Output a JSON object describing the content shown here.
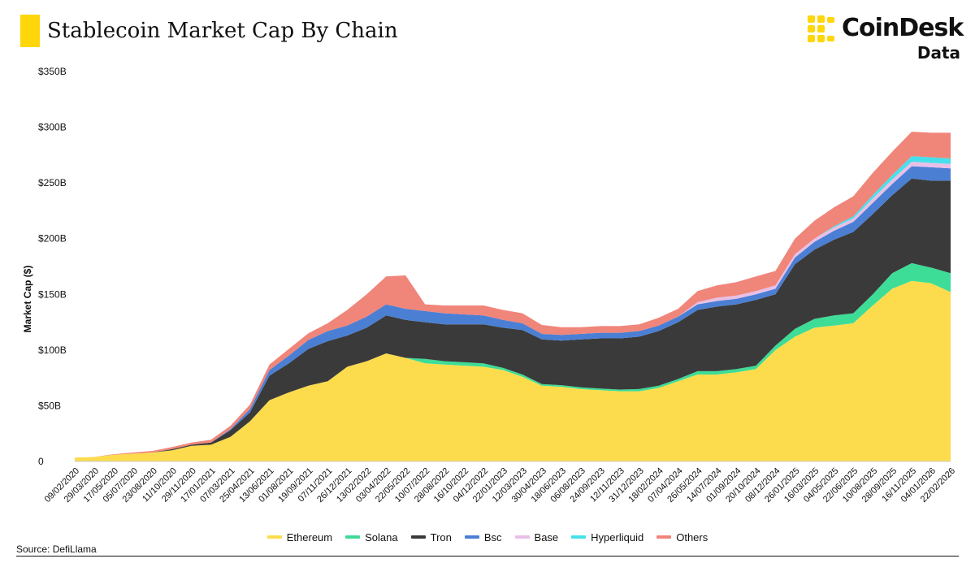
{
  "header": {
    "title": "Stablecoin Market Cap By Chain",
    "accent_color": "#ffd60a"
  },
  "logo": {
    "brand": "CoinDesk",
    "sub": "Data",
    "mark_color": "#ffd60a"
  },
  "source": "Source: DefiLlama",
  "chart_data": {
    "type": "area",
    "stacked": true,
    "ylabel": "Market Cap ($)",
    "xlabel": "",
    "ylim": [
      0,
      350
    ],
    "y_unit": "B",
    "y_ticks": [
      {
        "value": 0,
        "label": "0"
      },
      {
        "value": 50,
        "label": "$50B"
      },
      {
        "value": 100,
        "label": "$100B"
      },
      {
        "value": 150,
        "label": "$150B"
      },
      {
        "value": 200,
        "label": "$200B"
      },
      {
        "value": 250,
        "label": "$250B"
      },
      {
        "value": 300,
        "label": "$300B"
      },
      {
        "value": 350,
        "label": "$350B"
      }
    ],
    "grid": false,
    "legend_position": "bottom",
    "x_tick_labels": [
      "09/02/2020",
      "29/03/2020",
      "17/05/2020",
      "05/07/2020",
      "23/08/2020",
      "11/10/2020",
      "29/11/2020",
      "17/01/2021",
      "07/03/2021",
      "25/04/2021",
      "13/06/2021",
      "01/08/2021",
      "19/09/2021",
      "07/11/2021",
      "26/12/2021",
      "13/02/2022",
      "03/04/2022",
      "22/05/2022",
      "10/07/2022",
      "28/08/2022",
      "16/10/2022",
      "04/12/2022",
      "22/01/2023",
      "12/03/2023",
      "30/04/2023",
      "18/06/2023",
      "06/08/2023",
      "24/09/2023",
      "12/11/2023",
      "31/12/2023",
      "18/02/2024",
      "07/04/2024",
      "26/05/2024",
      "14/07/2024",
      "01/09/2024",
      "20/10/2024",
      "08/12/2024",
      "26/01/2025",
      "16/03/2025",
      "04/05/2025",
      "22/06/2025",
      "10/08/2025",
      "28/09/2025",
      "16/11/2025",
      "04/01/2026",
      "22/02/2026"
    ],
    "x": [
      "09/02/2020",
      "29/03/2020",
      "17/05/2020",
      "05/07/2020",
      "23/08/2020",
      "11/10/2020",
      "29/11/2020",
      "17/01/2021",
      "07/03/2021",
      "25/04/2021",
      "13/06/2021",
      "01/08/2021",
      "19/09/2021",
      "07/11/2021",
      "26/12/2021",
      "13/02/2022",
      "03/04/2022",
      "22/05/2022",
      "10/07/2022",
      "28/08/2022",
      "16/10/2022",
      "04/12/2022",
      "22/01/2023",
      "12/03/2023",
      "30/04/2023",
      "18/06/2023",
      "06/08/2023",
      "24/09/2023",
      "12/11/2023",
      "31/12/2023",
      "18/02/2024",
      "07/04/2024",
      "26/05/2024",
      "14/07/2024",
      "01/09/2024",
      "20/10/2024",
      "08/12/2024",
      "26/01/2025",
      "16/03/2025",
      "04/05/2025",
      "22/06/2025",
      "10/08/2025",
      "28/09/2025",
      "16/11/2025",
      "04/01/2026",
      "22/02/2026"
    ],
    "series": [
      {
        "name": "Ethereum",
        "color": "#fcdc4d",
        "values": [
          3.5,
          4,
          6,
          7,
          8,
          10,
          14,
          15,
          22,
          36,
          55,
          62,
          68,
          72,
          85,
          90,
          97,
          93,
          88,
          87,
          86,
          85,
          82,
          76,
          68,
          67,
          65,
          64,
          63,
          63,
          66,
          72,
          78,
          78,
          80,
          83,
          100,
          112,
          120,
          122,
          124,
          140,
          155,
          162,
          160,
          152
        ]
      },
      {
        "name": "Solana",
        "color": "#3ddc97",
        "values": [
          0,
          0,
          0,
          0,
          0,
          0,
          0,
          0,
          0,
          0,
          0,
          0,
          0,
          0,
          0,
          0,
          0,
          0,
          4,
          3,
          3,
          3,
          2,
          2,
          1.5,
          1.5,
          1.5,
          1.5,
          1.5,
          2,
          2,
          2,
          3,
          3,
          3,
          3,
          4,
          7,
          8,
          9,
          9,
          10,
          14,
          16,
          14,
          17
        ]
      },
      {
        "name": "Tron",
        "color": "#3a3a3a",
        "values": [
          0,
          0,
          0,
          0,
          0,
          1,
          1,
          2,
          6,
          8,
          22,
          26,
          33,
          36,
          28,
          30,
          34,
          34,
          33,
          33,
          34,
          35,
          36,
          40,
          40,
          40,
          43,
          45,
          46,
          47,
          49,
          51,
          55,
          58,
          58,
          59,
          46,
          58,
          62,
          68,
          73,
          72,
          70,
          76,
          78,
          83
        ]
      },
      {
        "name": "Bsc",
        "color": "#4a7fd4",
        "values": [
          0,
          0,
          0,
          0,
          0,
          0,
          0,
          0,
          1,
          3,
          5,
          7,
          8,
          9,
          9,
          10,
          10,
          10,
          10,
          10,
          9,
          8,
          7,
          6,
          5,
          5,
          5,
          5,
          5,
          5,
          5,
          5,
          5,
          5,
          5,
          5,
          5,
          6,
          7,
          8,
          9,
          10,
          10,
          11,
          12,
          11
        ]
      },
      {
        "name": "Base",
        "color": "#e8bfe6",
        "values": [
          0,
          0,
          0,
          0,
          0,
          0,
          0,
          0,
          0,
          0,
          0,
          0,
          0,
          0,
          0,
          0,
          0,
          0,
          0,
          0,
          0,
          0,
          0,
          0,
          0,
          0,
          0,
          0,
          0,
          0,
          0,
          0,
          2,
          3,
          3,
          3,
          3,
          3,
          3,
          3,
          3,
          4,
          4,
          4,
          4,
          4
        ]
      },
      {
        "name": "Hyperliquid",
        "color": "#46e0ea",
        "values": [
          0,
          0,
          0,
          0,
          0,
          0,
          0,
          0,
          0,
          0,
          0,
          0,
          0,
          0,
          0,
          0,
          0,
          0,
          0,
          0,
          0,
          0,
          0,
          0,
          0,
          0,
          0,
          0,
          0,
          0,
          0,
          0,
          0,
          0,
          0,
          0,
          0,
          0,
          0,
          1,
          2,
          3,
          4,
          5,
          5,
          5
        ]
      },
      {
        "name": "Others",
        "color": "#f0857a",
        "values": [
          0,
          0,
          0.5,
          1,
          1.5,
          2,
          2,
          2.5,
          3,
          4,
          5,
          6,
          6,
          7,
          14,
          20,
          25,
          30,
          6,
          7,
          8,
          9,
          9,
          9,
          8,
          7,
          6,
          6,
          6,
          6,
          7,
          7,
          10,
          11,
          12,
          13,
          13,
          14,
          16,
          17,
          18,
          20,
          21,
          22,
          22,
          23
        ]
      }
    ]
  }
}
